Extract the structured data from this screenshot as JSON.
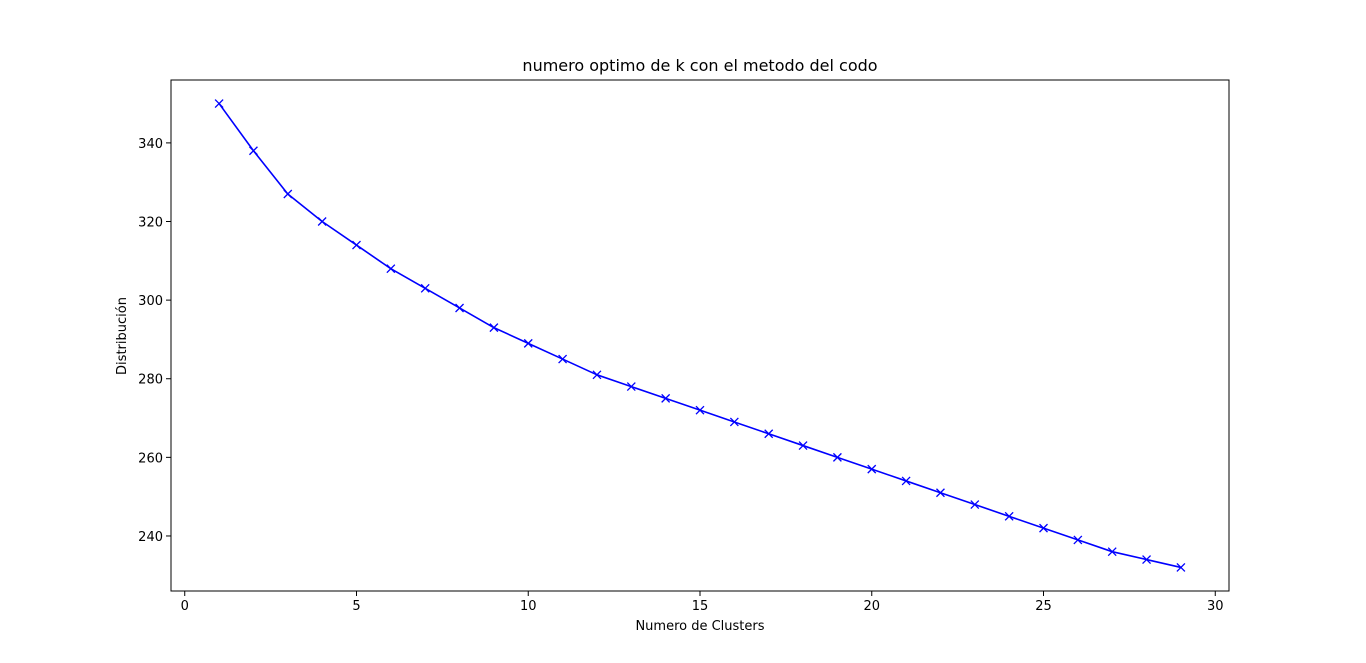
{
  "chart_data": {
    "type": "line",
    "title": "numero optimo de k con el metodo del codo",
    "xlabel": "Numero de Clusters",
    "ylabel": "Distribución",
    "xlim": [
      -0.4,
      30.4
    ],
    "ylim": [
      226,
      356
    ],
    "xticks": [
      0,
      5,
      10,
      15,
      20,
      25,
      30
    ],
    "yticks": [
      240,
      260,
      280,
      300,
      320,
      340
    ],
    "grid": false,
    "legend": "none",
    "series": [
      {
        "color": "#0000ff",
        "marker": "x",
        "x": [
          1,
          2,
          3,
          4,
          5,
          6,
          7,
          8,
          9,
          10,
          11,
          12,
          13,
          14,
          15,
          16,
          17,
          18,
          19,
          20,
          21,
          22,
          23,
          24,
          25,
          26,
          27,
          28,
          29
        ],
        "y": [
          350,
          338,
          327,
          320,
          314,
          308,
          303,
          298,
          293,
          289,
          285,
          281,
          278,
          275,
          272,
          269,
          266,
          263,
          260,
          257,
          254,
          251,
          248,
          245,
          242,
          239,
          236,
          234,
          232
        ]
      }
    ]
  }
}
